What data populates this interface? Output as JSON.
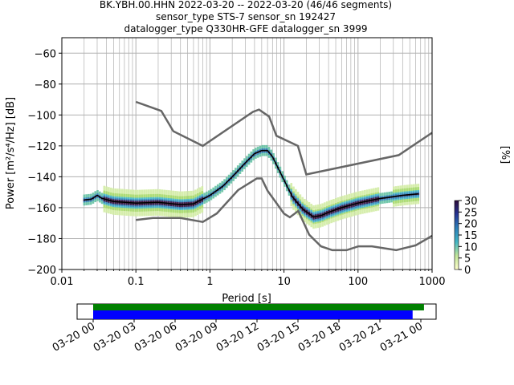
{
  "title_lines": [
    "BK.YBH.00.HHN   2022-03-20 -- 2022-03-20  (46/46 segments)",
    "sensor_type STS-7 sensor_sn 192427",
    "datalogger_type Q330HR-GFE datalogger_sn 3999"
  ],
  "chart_data": {
    "type": "heatmap",
    "xlabel": "Period [s]",
    "ylabel": "Power [m²/s⁴/Hz] [dB]",
    "xscale": "log",
    "xlim": [
      0.01,
      1000
    ],
    "ylim": [
      -200,
      -50
    ],
    "x_ticks": [
      0.01,
      0.1,
      1,
      10,
      100,
      1000
    ],
    "x_tick_labels": [
      "0.01",
      "0.1",
      "1",
      "10",
      "100",
      "1000"
    ],
    "y_ticks": [
      -200,
      -180,
      -160,
      -140,
      -120,
      -100,
      -80,
      -60
    ],
    "y_tick_labels": [
      "−200",
      "−180",
      "−160",
      "−140",
      "−120",
      "−100",
      "−80",
      "−60"
    ],
    "grid": true,
    "noise_model_high": {
      "x": [
        0.1,
        0.22,
        0.32,
        0.8,
        3.8,
        4.6,
        6.3,
        7.9,
        15.4,
        20,
        354.8,
        1000
      ],
      "y": [
        -91.5,
        -97.4,
        -110.5,
        -120,
        -98,
        -96.5,
        -101,
        -113.5,
        -120,
        -138.5,
        -126,
        -111.5
      ]
    },
    "noise_model_low": {
      "x": [
        0.1,
        0.17,
        0.4,
        0.8,
        1.24,
        2.4,
        4.3,
        5,
        6,
        10,
        12,
        15.6,
        21.9,
        31.6,
        45,
        70,
        101,
        154,
        328,
        600,
        1000
      ],
      "y": [
        -168,
        -166.7,
        -166.7,
        -169.2,
        -163.7,
        -148.6,
        -141.1,
        -141.1,
        -149,
        -163.8,
        -166.2,
        -162.1,
        -177.5,
        -185,
        -187.5,
        -187.5,
        -185,
        -185,
        -187.5,
        -184.4,
        -178.2
      ]
    },
    "mean_psd": {
      "x": [
        0.02,
        0.025,
        0.03,
        0.035,
        0.05,
        0.1,
        0.2,
        0.4,
        0.6,
        1,
        1.5,
        2,
        3,
        4,
        5,
        6,
        7,
        10,
        13,
        18,
        25,
        32,
        40,
        60,
        100,
        200,
        400,
        650
      ],
      "y": [
        -155,
        -154.5,
        -152,
        -154,
        -156,
        -157,
        -156.5,
        -158,
        -157.5,
        -152,
        -146,
        -140,
        -131,
        -125,
        -123,
        -123,
        -127,
        -142,
        -153,
        -161,
        -166,
        -165,
        -163,
        -160,
        -157,
        -154,
        -152,
        -151
      ]
    },
    "colorbar": {
      "label": "[%]",
      "range": [
        0,
        30
      ],
      "ticks": [
        0,
        5,
        10,
        15,
        20,
        25,
        30
      ]
    }
  },
  "timeline": {
    "tick_labels": [
      "03-20 00",
      "03-20 03",
      "03-20 06",
      "03-20 09",
      "03-20 12",
      "03-20 15",
      "03-20 18",
      "03-20 21",
      "03-21 00"
    ],
    "data_coverage": [
      0,
      0.99
    ],
    "psd_coverage": [
      0,
      0.97
    ],
    "colors": {
      "data": "#008000",
      "psd": "#0000ff"
    }
  },
  "colors": {
    "model_line": "#666666",
    "mean_line": "#000000",
    "grid": "#b0b0b0"
  }
}
